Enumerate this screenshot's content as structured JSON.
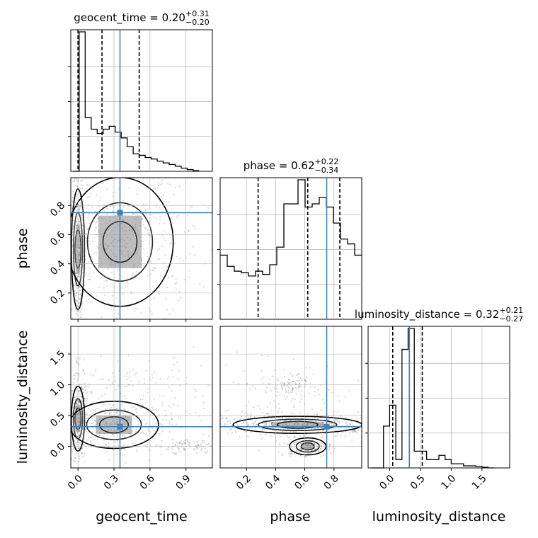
{
  "chart_data": {
    "type": "corner",
    "truth_color": "#4682b4",
    "parameters": [
      "geocent_time",
      "phase",
      "luminosity_distance"
    ],
    "axis_labels": {
      "geocent_time": "geocent_time",
      "phase": "phase",
      "luminosity_distance": "luminosity_distance"
    },
    "titles": {
      "geocent_time": {
        "name": "geocent_time",
        "median": "0.20",
        "plus": "+0.31",
        "minus": "−0.20"
      },
      "phase": {
        "name": "phase",
        "median": "0.62",
        "plus": "+0.22",
        "minus": "−0.34"
      },
      "luminosity_distance": {
        "name": "luminosity_distance",
        "median": "0.32",
        "plus": "+0.21",
        "minus": "−0.27"
      }
    },
    "ranges": {
      "geocent_time": [
        -0.06,
        1.12
      ],
      "phase": [
        0.02,
        0.99
      ],
      "luminosity_distance": [
        -0.35,
        1.95
      ]
    },
    "ticks": {
      "geocent_time": [
        {
          "v": 0.0,
          "label": "0.0"
        },
        {
          "v": 0.3,
          "label": "0.3"
        },
        {
          "v": 0.6,
          "label": "0.6"
        },
        {
          "v": 0.9,
          "label": "0.9"
        }
      ],
      "phase": [
        {
          "v": 0.2,
          "label": "0.2"
        },
        {
          "v": 0.4,
          "label": "0.4"
        },
        {
          "v": 0.6,
          "label": "0.6"
        },
        {
          "v": 0.8,
          "label": "0.8"
        }
      ],
      "luminosity_distance": [
        {
          "v": 0.0,
          "label": "0.0"
        },
        {
          "v": 0.5,
          "label": "0.5"
        },
        {
          "v": 1.0,
          "label": "1.0"
        },
        {
          "v": 1.5,
          "label": "1.5"
        }
      ]
    },
    "truths": {
      "geocent_time": 0.35,
      "phase": 0.75,
      "luminosity_distance": 0.32
    },
    "quantiles": {
      "geocent_time": [
        0.0,
        0.2,
        0.51
      ],
      "phase": [
        0.28,
        0.62,
        0.84
      ],
      "luminosity_distance": [
        0.05,
        0.32,
        0.53
      ]
    },
    "hist_geocent_time": {
      "bins_start": -0.04,
      "bin_width": 0.05,
      "counts": [
        0.0,
        0.96,
        0.37,
        0.29,
        0.26,
        0.29,
        0.31,
        0.27,
        0.23,
        0.17,
        0.12,
        0.11,
        0.095,
        0.085,
        0.07,
        0.058,
        0.047,
        0.035,
        0.022,
        0.012,
        0.005
      ]
    },
    "hist_phase": {
      "bins_start": 0.02,
      "bin_width": 0.0485,
      "counts": [
        0.4,
        0.33,
        0.3,
        0.29,
        0.27,
        0.3,
        0.28,
        0.34,
        0.45,
        0.72,
        0.72,
        0.87,
        0.7,
        0.72,
        0.76,
        0.7,
        0.6,
        0.5,
        0.47,
        0.4
      ]
    },
    "hist_luminosity_distance": {
      "bins_start": -0.3,
      "bin_width": 0.1,
      "counts": [
        0.0,
        0.0,
        0.3,
        0.45,
        0.06,
        0.85,
        1.0,
        0.12,
        0.12,
        0.06,
        0.06,
        0.09,
        0.06,
        0.03,
        0.03,
        0.015,
        0.015,
        0.01,
        0.005,
        0.0
      ]
    }
  }
}
